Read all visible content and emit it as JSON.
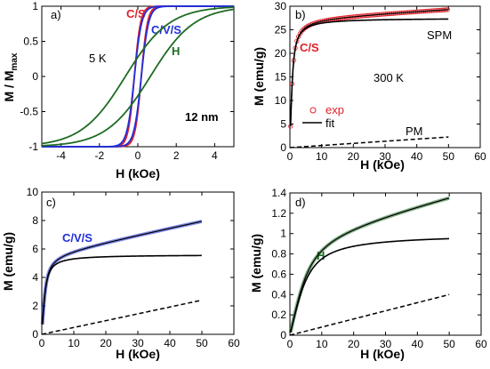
{
  "chart_data": [
    {
      "panel": "a)",
      "type": "line",
      "xlabel": "H (kOe)",
      "ylabel": "M / M",
      "ylabel_sub": "max",
      "xlim": [
        -5,
        5
      ],
      "ylim": [
        -1,
        1
      ],
      "xticks": [
        -4,
        -2,
        0,
        2,
        4
      ],
      "yticks": [
        -1,
        -0.5,
        0,
        0.5,
        1
      ],
      "ytick_labels": [
        "-1",
        "-0.5",
        "0",
        "0.5",
        "1"
      ],
      "annotations": [
        {
          "text": "C/S",
          "color": "#e0202a"
        },
        {
          "text": "C/V/S",
          "color": "#1f2fd8"
        },
        {
          "text": "H",
          "color": "#1e6b22"
        },
        {
          "text": "5 K",
          "color": "#000000"
        },
        {
          "text": "12 nm",
          "color": "#000000"
        }
      ],
      "series": [
        {
          "color": "#e0202a",
          "loop_shape": {
            "ms": 1,
            "hc": 0.18,
            "width": 0.32
          }
        },
        {
          "color": "#1f2fd8",
          "loop_shape": {
            "ms": 1,
            "hc": 0.18,
            "width": 0.38
          }
        },
        {
          "color": "#1e6b22",
          "loop_shape": {
            "ms": 1,
            "hc": 0.65,
            "width": 2.3
          }
        }
      ]
    },
    {
      "panel": "b)",
      "type": "line",
      "xlabel": "H (kOe)",
      "ylabel": "M (emu/g)",
      "xlim": [
        0,
        60
      ],
      "ylim": [
        0,
        30
      ],
      "xticks": [
        0,
        10,
        20,
        30,
        40,
        50,
        60
      ],
      "yticks": [
        0,
        5,
        10,
        15,
        20,
        25,
        30
      ],
      "annotations": [
        {
          "text": "C/S",
          "color": "#e0202a"
        },
        {
          "text": "SPM",
          "color": "#000000"
        },
        {
          "text": "300 K",
          "color": "#000000"
        },
        {
          "text": "PM",
          "color": "#000000"
        }
      ],
      "legend": [
        {
          "text": "exp",
          "color": "#e0202a",
          "marker": "circle"
        },
        {
          "text": "fit",
          "color": "#000000",
          "marker": "line"
        }
      ],
      "spm_curve": {
        "ms": 27.5,
        "h0": 1.2
      },
      "pm_slope": 0.045,
      "exp_curve": {
        "ms": 27.5,
        "h0": 1.2,
        "slope": 0.04
      }
    },
    {
      "panel": "c)",
      "type": "line",
      "xlabel": "H (kOe)",
      "ylabel": "M (emu/g)",
      "xlim": [
        0,
        60
      ],
      "ylim": [
        0,
        10
      ],
      "xticks": [
        0,
        10,
        20,
        30,
        40,
        50,
        60
      ],
      "yticks": [
        0,
        2,
        4,
        6,
        8,
        10
      ],
      "annotations": [
        {
          "text": "C/V/S",
          "color": "#1f2fd8"
        }
      ],
      "spm_curve": {
        "ms": 5.6,
        "h0": 1.6
      },
      "pm_slope": 0.048,
      "exp_curve": {
        "ms": 5.6,
        "h0": 1.6,
        "slope": 0.048
      }
    },
    {
      "panel": "d)",
      "type": "line",
      "xlabel": "H (kOe)",
      "ylabel": "M (emu/g)",
      "xlim": [
        0,
        60
      ],
      "ylim": [
        0,
        1.4
      ],
      "xticks": [
        0,
        10,
        20,
        30,
        40,
        50,
        60
      ],
      "yticks": [
        0,
        0.2,
        0.4,
        0.6,
        0.8,
        1,
        1.2,
        1.4
      ],
      "annotations": [
        {
          "text": "H",
          "color": "#1e6b22"
        }
      ],
      "spm_curve": {
        "ms": 1.0,
        "h0": 7.5
      },
      "pm_slope": 0.008,
      "exp_curve": {
        "ms": 1.0,
        "h0": 7.5,
        "slope": 0.008
      }
    }
  ]
}
